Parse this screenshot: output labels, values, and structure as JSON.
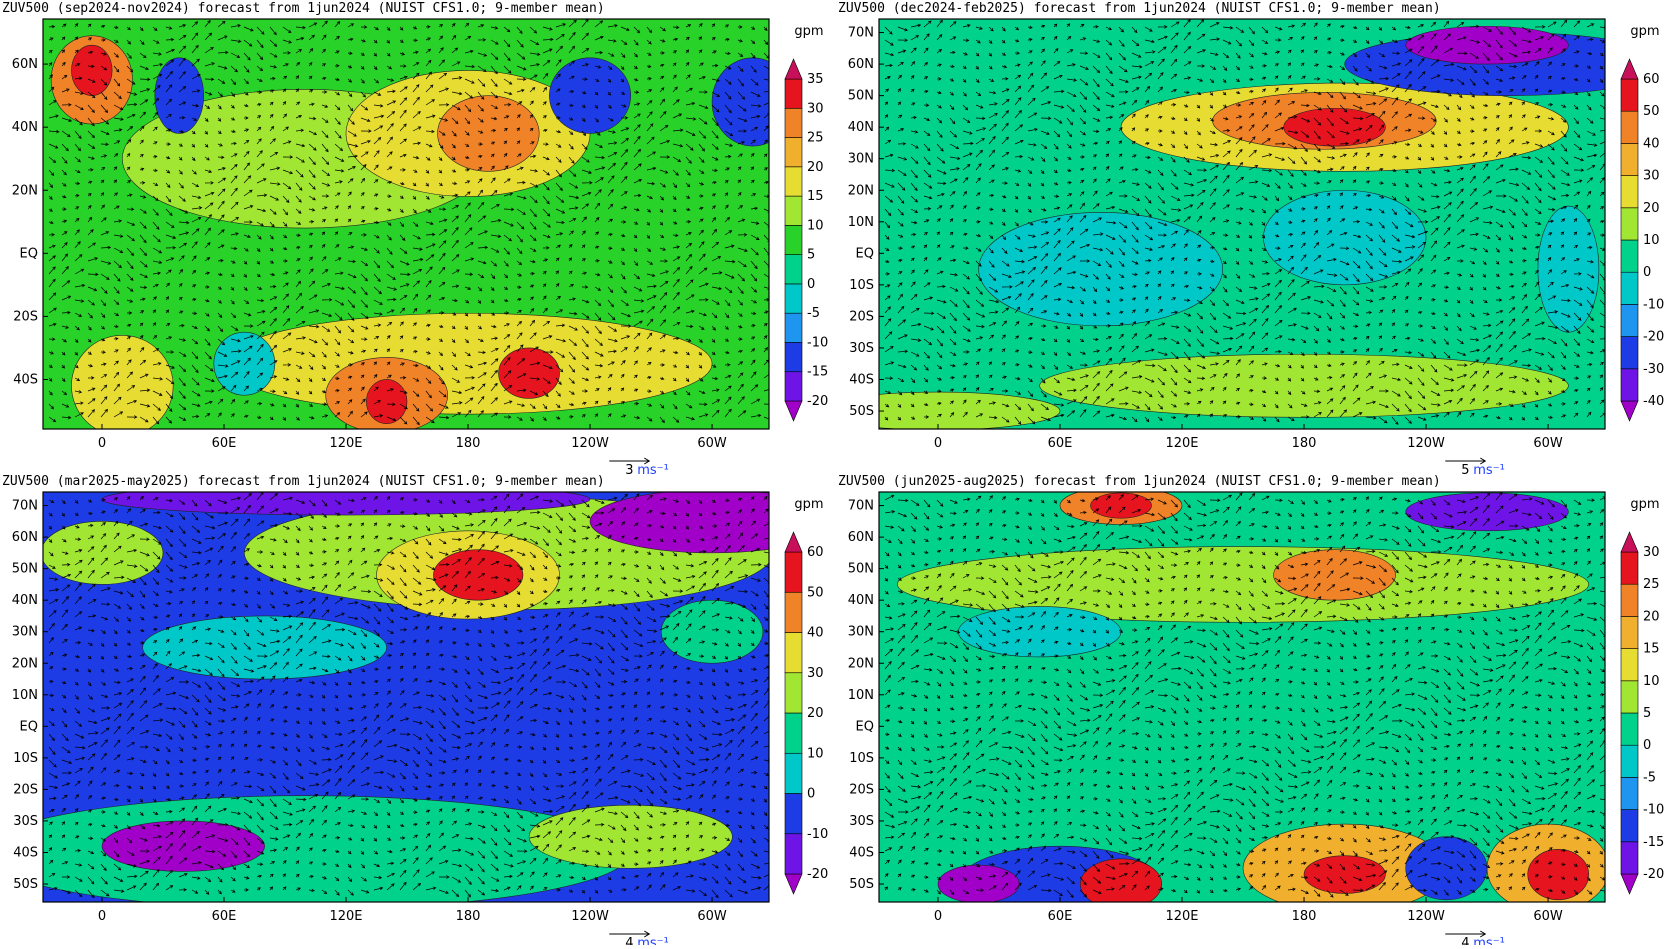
{
  "panels": [
    {
      "title": "ZUV500 (sep2024-nov2024) forecast from 1jun2024 (NUIST CFS1.0; 9-member mean)",
      "unit": "gpm",
      "lat_labels": [
        "60N",
        "40N",
        "20N",
        "EQ",
        "20S",
        "40S"
      ],
      "lon_labels": [
        "0",
        "60E",
        "120E",
        "180",
        "120W",
        "60W"
      ],
      "levels": [
        "35",
        "30",
        "25",
        "20",
        "15",
        "10",
        "5",
        "0",
        "-5",
        "-10",
        "-15",
        "-20"
      ],
      "colors": [
        "#a000c8",
        "#6e14e6",
        "#1e3ce6",
        "#1e96f0",
        "#00c8c8",
        "#00d28c",
        "#28d228",
        "#a0e632",
        "#e6dc32",
        "#f0af2d",
        "#f08228",
        "#e6141e",
        "#c8105a"
      ],
      "vector_ref": "3",
      "vector_unit": "ms⁻¹"
    },
    {
      "title": "ZUV500 (dec2024-feb2025) forecast from 1jun2024 (NUIST CFS1.0; 9-member mean)",
      "unit": "gpm",
      "lat_labels": [
        "70N",
        "60N",
        "50N",
        "40N",
        "30N",
        "20N",
        "10N",
        "EQ",
        "10S",
        "20S",
        "30S",
        "40S",
        "50S"
      ],
      "lon_labels": [
        "0",
        "60E",
        "120E",
        "180",
        "120W",
        "60W"
      ],
      "levels": [
        "60",
        "50",
        "40",
        "30",
        "20",
        "10",
        "0",
        "-10",
        "-20",
        "-30",
        "-40"
      ],
      "colors": [
        "#a000c8",
        "#6e14e6",
        "#1e3ce6",
        "#1e96f0",
        "#00c8c8",
        "#00d28c",
        "#a0e632",
        "#e6dc32",
        "#f0af2d",
        "#f08228",
        "#e6141e",
        "#c8105a"
      ],
      "vector_ref": "5",
      "vector_unit": "ms⁻¹"
    },
    {
      "title": "ZUV500 (mar2025-may2025) forecast from 1jun2024 (NUIST CFS1.0; 9-member mean)",
      "unit": "gpm",
      "lat_labels": [
        "70N",
        "60N",
        "50N",
        "40N",
        "30N",
        "20N",
        "10N",
        "EQ",
        "10S",
        "20S",
        "30S",
        "40S",
        "50S"
      ],
      "lon_labels": [
        "0",
        "60E",
        "120E",
        "180",
        "120W",
        "60W"
      ],
      "levels": [
        "60",
        "50",
        "40",
        "30",
        "20",
        "10",
        "0",
        "-10",
        "-20"
      ],
      "colors": [
        "#a000c8",
        "#6e14e6",
        "#1e3ce6",
        "#00c8c8",
        "#00d28c",
        "#a0e632",
        "#e6dc32",
        "#f08228",
        "#e6141e",
        "#c8105a"
      ],
      "vector_ref": "4",
      "vector_unit": "ms⁻¹"
    },
    {
      "title": "ZUV500 (jun2025-aug2025) forecast from 1jun2024 (NUIST CFS1.0; 9-member mean)",
      "unit": "gpm",
      "lat_labels": [
        "70N",
        "60N",
        "50N",
        "40N",
        "30N",
        "20N",
        "10N",
        "EQ",
        "10S",
        "20S",
        "30S",
        "40S",
        "50S"
      ],
      "lon_labels": [
        "0",
        "60E",
        "120E",
        "180",
        "120W",
        "60W"
      ],
      "levels": [
        "30",
        "25",
        "20",
        "15",
        "10",
        "5",
        "0",
        "-5",
        "-10",
        "-15",
        "-20"
      ],
      "colors": [
        "#a000c8",
        "#6e14e6",
        "#1e3ce6",
        "#1e96f0",
        "#00c8c8",
        "#00d28c",
        "#a0e632",
        "#e6dc32",
        "#f0af2d",
        "#f08228",
        "#e6141e",
        "#c8105a"
      ],
      "vector_ref": "4",
      "vector_unit": "ms⁻¹"
    }
  ]
}
